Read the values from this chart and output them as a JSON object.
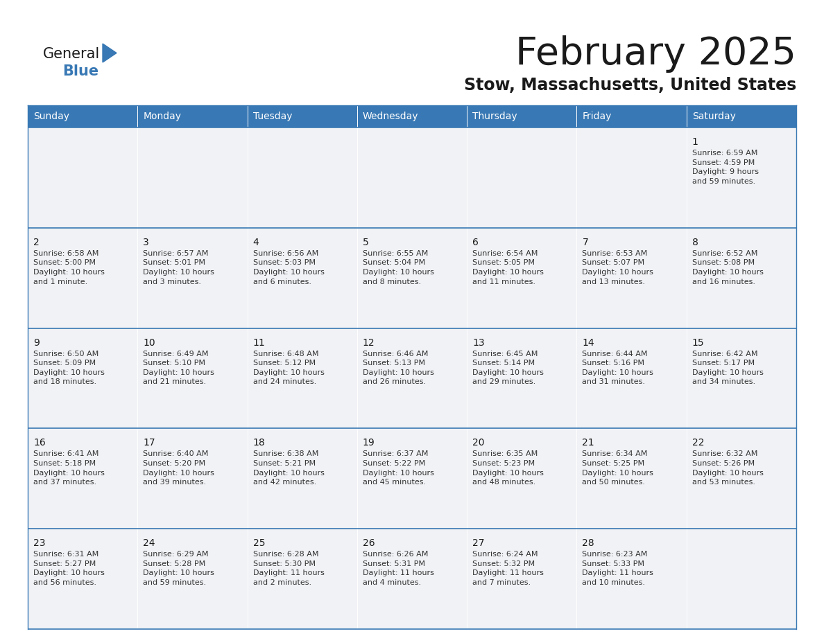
{
  "title": "February 2025",
  "subtitle": "Stow, Massachusetts, United States",
  "header_color": "#3878b4",
  "header_text_color": "#ffffff",
  "cell_bg_color": "#f0f2f5",
  "border_color": "#3878b4",
  "title_color": "#1a1a1a",
  "subtitle_color": "#1a1a1a",
  "day_number_color": "#1a1a1a",
  "cell_text_color": "#333333",
  "days_of_week": [
    "Sunday",
    "Monday",
    "Tuesday",
    "Wednesday",
    "Thursday",
    "Friday",
    "Saturday"
  ],
  "weeks": [
    [
      {
        "day": null,
        "info": null
      },
      {
        "day": null,
        "info": null
      },
      {
        "day": null,
        "info": null
      },
      {
        "day": null,
        "info": null
      },
      {
        "day": null,
        "info": null
      },
      {
        "day": null,
        "info": null
      },
      {
        "day": 1,
        "info": "Sunrise: 6:59 AM\nSunset: 4:59 PM\nDaylight: 9 hours\nand 59 minutes."
      }
    ],
    [
      {
        "day": 2,
        "info": "Sunrise: 6:58 AM\nSunset: 5:00 PM\nDaylight: 10 hours\nand 1 minute."
      },
      {
        "day": 3,
        "info": "Sunrise: 6:57 AM\nSunset: 5:01 PM\nDaylight: 10 hours\nand 3 minutes."
      },
      {
        "day": 4,
        "info": "Sunrise: 6:56 AM\nSunset: 5:03 PM\nDaylight: 10 hours\nand 6 minutes."
      },
      {
        "day": 5,
        "info": "Sunrise: 6:55 AM\nSunset: 5:04 PM\nDaylight: 10 hours\nand 8 minutes."
      },
      {
        "day": 6,
        "info": "Sunrise: 6:54 AM\nSunset: 5:05 PM\nDaylight: 10 hours\nand 11 minutes."
      },
      {
        "day": 7,
        "info": "Sunrise: 6:53 AM\nSunset: 5:07 PM\nDaylight: 10 hours\nand 13 minutes."
      },
      {
        "day": 8,
        "info": "Sunrise: 6:52 AM\nSunset: 5:08 PM\nDaylight: 10 hours\nand 16 minutes."
      }
    ],
    [
      {
        "day": 9,
        "info": "Sunrise: 6:50 AM\nSunset: 5:09 PM\nDaylight: 10 hours\nand 18 minutes."
      },
      {
        "day": 10,
        "info": "Sunrise: 6:49 AM\nSunset: 5:10 PM\nDaylight: 10 hours\nand 21 minutes."
      },
      {
        "day": 11,
        "info": "Sunrise: 6:48 AM\nSunset: 5:12 PM\nDaylight: 10 hours\nand 24 minutes."
      },
      {
        "day": 12,
        "info": "Sunrise: 6:46 AM\nSunset: 5:13 PM\nDaylight: 10 hours\nand 26 minutes."
      },
      {
        "day": 13,
        "info": "Sunrise: 6:45 AM\nSunset: 5:14 PM\nDaylight: 10 hours\nand 29 minutes."
      },
      {
        "day": 14,
        "info": "Sunrise: 6:44 AM\nSunset: 5:16 PM\nDaylight: 10 hours\nand 31 minutes."
      },
      {
        "day": 15,
        "info": "Sunrise: 6:42 AM\nSunset: 5:17 PM\nDaylight: 10 hours\nand 34 minutes."
      }
    ],
    [
      {
        "day": 16,
        "info": "Sunrise: 6:41 AM\nSunset: 5:18 PM\nDaylight: 10 hours\nand 37 minutes."
      },
      {
        "day": 17,
        "info": "Sunrise: 6:40 AM\nSunset: 5:20 PM\nDaylight: 10 hours\nand 39 minutes."
      },
      {
        "day": 18,
        "info": "Sunrise: 6:38 AM\nSunset: 5:21 PM\nDaylight: 10 hours\nand 42 minutes."
      },
      {
        "day": 19,
        "info": "Sunrise: 6:37 AM\nSunset: 5:22 PM\nDaylight: 10 hours\nand 45 minutes."
      },
      {
        "day": 20,
        "info": "Sunrise: 6:35 AM\nSunset: 5:23 PM\nDaylight: 10 hours\nand 48 minutes."
      },
      {
        "day": 21,
        "info": "Sunrise: 6:34 AM\nSunset: 5:25 PM\nDaylight: 10 hours\nand 50 minutes."
      },
      {
        "day": 22,
        "info": "Sunrise: 6:32 AM\nSunset: 5:26 PM\nDaylight: 10 hours\nand 53 minutes."
      }
    ],
    [
      {
        "day": 23,
        "info": "Sunrise: 6:31 AM\nSunset: 5:27 PM\nDaylight: 10 hours\nand 56 minutes."
      },
      {
        "day": 24,
        "info": "Sunrise: 6:29 AM\nSunset: 5:28 PM\nDaylight: 10 hours\nand 59 minutes."
      },
      {
        "day": 25,
        "info": "Sunrise: 6:28 AM\nSunset: 5:30 PM\nDaylight: 11 hours\nand 2 minutes."
      },
      {
        "day": 26,
        "info": "Sunrise: 6:26 AM\nSunset: 5:31 PM\nDaylight: 11 hours\nand 4 minutes."
      },
      {
        "day": 27,
        "info": "Sunrise: 6:24 AM\nSunset: 5:32 PM\nDaylight: 11 hours\nand 7 minutes."
      },
      {
        "day": 28,
        "info": "Sunrise: 6:23 AM\nSunset: 5:33 PM\nDaylight: 11 hours\nand 10 minutes."
      },
      {
        "day": null,
        "info": null
      }
    ]
  ],
  "logo_general_color": "#1a1a1a",
  "logo_blue_color": "#3878b4",
  "logo_triangle_color": "#3878b4"
}
